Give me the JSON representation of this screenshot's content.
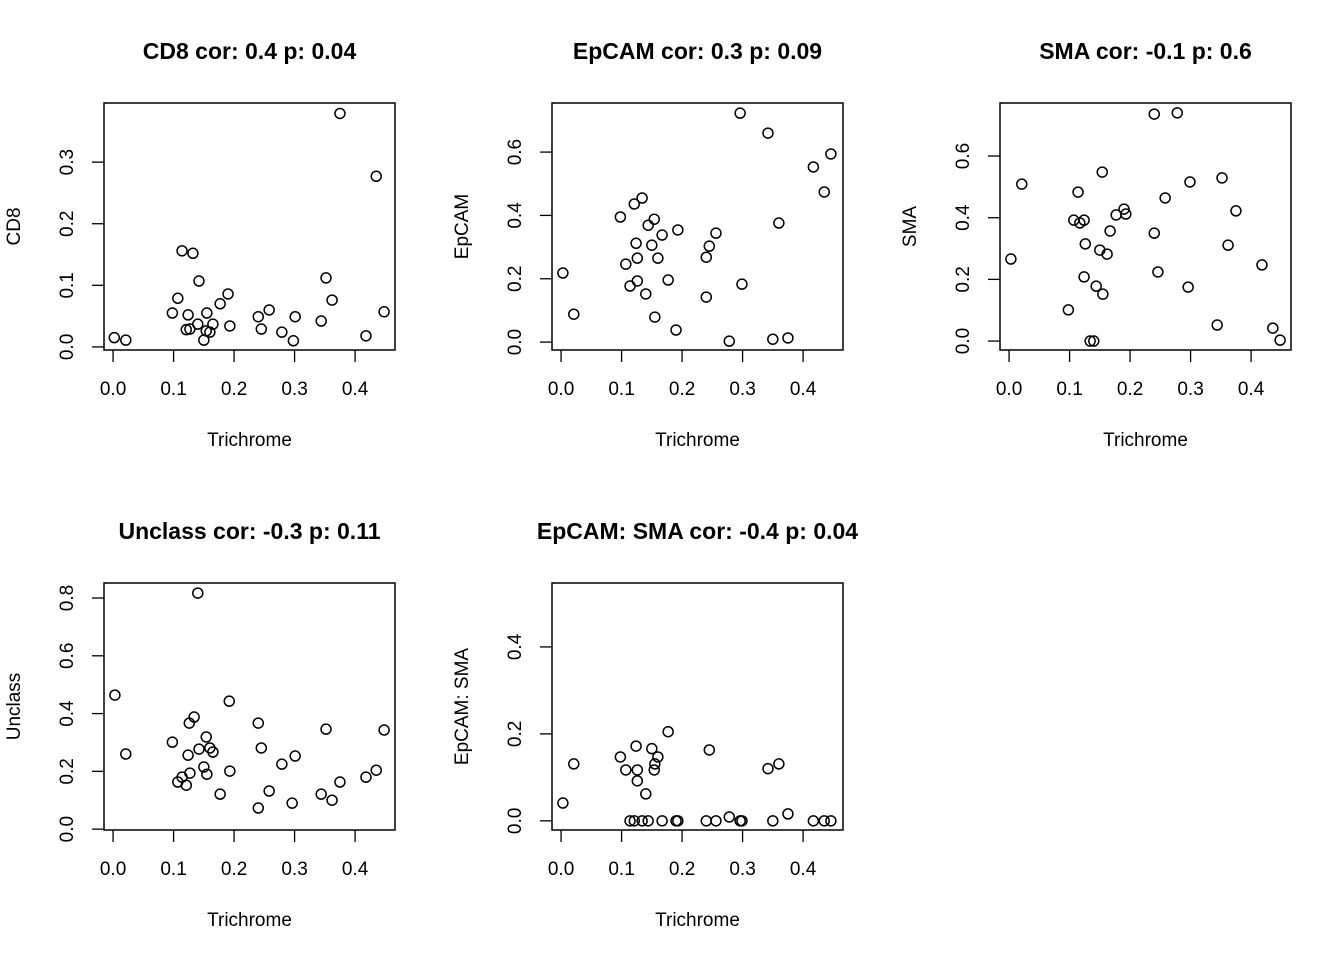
{
  "chart_data": [
    {
      "type": "scatter",
      "title": "CD8 cor: 0.4 p: 0.04",
      "xlabel": "Trichrome",
      "ylabel": "CD8",
      "x": [
        0.002,
        0.021,
        0.098,
        0.107,
        0.114,
        0.121,
        0.124,
        0.127,
        0.132,
        0.14,
        0.142,
        0.15,
        0.155,
        0.154,
        0.16,
        0.165,
        0.177,
        0.19,
        0.193,
        0.24,
        0.245,
        0.258,
        0.279,
        0.298,
        0.301,
        0.344,
        0.352,
        0.362,
        0.375,
        0.418,
        0.435,
        0.448
      ],
      "values": [
        0.015,
        0.011,
        0.055,
        0.079,
        0.156,
        0.028,
        0.052,
        0.029,
        0.152,
        0.037,
        0.107,
        0.011,
        0.055,
        0.026,
        0.024,
        0.037,
        0.07,
        0.086,
        0.034,
        0.049,
        0.029,
        0.06,
        0.024,
        0.01,
        0.049,
        0.042,
        0.112,
        0.076,
        0.379,
        0.018,
        0.277,
        0.057
      ],
      "xlim": [
        -0.015,
        0.466
      ],
      "ylim": [
        -0.005,
        0.396
      ],
      "xticks": [
        {
          "value": 0,
          "label": "0.0"
        },
        0.1,
        0.2,
        0.3,
        0.4
      ],
      "yticks": [
        {
          "value": 0,
          "label": "0.0"
        },
        0.1,
        0.2,
        0.3
      ]
    },
    {
      "type": "scatter",
      "title": "EpCAM cor: 0.3 p: 0.09",
      "xlabel": "Trichrome",
      "ylabel": "EpCAM",
      "x": [
        0.003,
        0.021,
        0.098,
        0.107,
        0.114,
        0.121,
        0.124,
        0.126,
        0.126,
        0.134,
        0.14,
        0.144,
        0.15,
        0.154,
        0.155,
        0.16,
        0.167,
        0.177,
        0.19,
        0.193,
        0.24,
        0.245,
        0.24,
        0.256,
        0.278,
        0.296,
        0.299,
        0.342,
        0.35,
        0.36,
        0.375,
        0.417,
        0.435,
        0.446
      ],
      "values": [
        0.218,
        0.088,
        0.395,
        0.246,
        0.177,
        0.436,
        0.312,
        0.265,
        0.193,
        0.455,
        0.152,
        0.369,
        0.306,
        0.388,
        0.079,
        0.265,
        0.338,
        0.196,
        0.038,
        0.354,
        0.268,
        0.303,
        0.142,
        0.344,
        0.003,
        0.723,
        0.183,
        0.66,
        0.009,
        0.376,
        0.013,
        0.553,
        0.474,
        0.594
      ],
      "xlim": [
        -0.015,
        0.466
      ],
      "ylim": [
        -0.025,
        0.755
      ],
      "xticks": [
        {
          "value": 0,
          "label": "0.0"
        },
        0.1,
        0.2,
        0.3,
        0.4
      ],
      "yticks": [
        {
          "value": 0,
          "label": "0.0"
        },
        0.2,
        0.4,
        0.6
      ]
    },
    {
      "type": "scatter",
      "title": "SMA cor: -0.1 p: 0.6",
      "xlabel": "Trichrome",
      "ylabel": "SMA",
      "x": [
        0.003,
        0.021,
        0.098,
        0.107,
        0.114,
        0.117,
        0.124,
        0.126,
        0.124,
        0.134,
        0.14,
        0.144,
        0.15,
        0.154,
        0.155,
        0.162,
        0.167,
        0.177,
        0.19,
        0.193,
        0.24,
        0.246,
        0.258,
        0.296,
        0.299,
        0.344,
        0.352,
        0.362,
        0.375,
        0.418,
        0.436,
        0.448,
        0.24,
        0.278
      ],
      "values": [
        0.266,
        0.509,
        0.101,
        0.392,
        0.483,
        0.383,
        0.392,
        0.315,
        0.208,
        0,
        0,
        0.178,
        0.295,
        0.548,
        0.152,
        0.282,
        0.357,
        0.409,
        0.428,
        0.412,
        0.35,
        0.224,
        0.464,
        0.175,
        0.516,
        0.052,
        0.529,
        0.311,
        0.422,
        0.247,
        0.042,
        0.003,
        0.736,
        0.74
      ],
      "xlim": [
        -0.015,
        0.466
      ],
      "ylim": [
        -0.029,
        0.772
      ],
      "xticks": [
        {
          "value": 0,
          "label": "0.0"
        },
        0.1,
        0.2,
        0.3,
        0.4
      ],
      "yticks": [
        {
          "value": 0,
          "label": "0.0"
        },
        0.2,
        0.4,
        0.6
      ]
    },
    {
      "type": "scatter",
      "title": "Unclass cor: -0.3 p: 0.11",
      "xlabel": "Trichrome",
      "ylabel": "Unclass",
      "x": [
        0.003,
        0.021,
        0.098,
        0.107,
        0.114,
        0.121,
        0.124,
        0.126,
        0.127,
        0.134,
        0.14,
        0.142,
        0.15,
        0.154,
        0.155,
        0.16,
        0.165,
        0.177,
        0.192,
        0.193,
        0.24,
        0.24,
        0.245,
        0.258,
        0.279,
        0.296,
        0.301,
        0.344,
        0.352,
        0.362,
        0.375,
        0.418,
        0.435,
        0.448
      ],
      "values": [
        0.464,
        0.26,
        0.301,
        0.163,
        0.18,
        0.152,
        0.256,
        0.367,
        0.194,
        0.388,
        0.817,
        0.277,
        0.215,
        0.319,
        0.19,
        0.281,
        0.267,
        0.121,
        0.443,
        0.201,
        0.367,
        0.073,
        0.281,
        0.132,
        0.225,
        0.09,
        0.253,
        0.121,
        0.346,
        0.1,
        0.163,
        0.18,
        0.204,
        0.343
      ],
      "xlim": [
        -0.015,
        0.466
      ],
      "ylim": [
        -0.003,
        0.852
      ],
      "xticks": [
        {
          "value": 0,
          "label": "0.0"
        },
        0.1,
        0.2,
        0.3,
        0.4
      ],
      "yticks": [
        {
          "value": 0,
          "label": "0.0"
        },
        0.2,
        0.4,
        0.6,
        0.8
      ]
    },
    {
      "type": "scatter",
      "title": "EpCAM: SMA cor: -0.4 p: 0.04",
      "xlabel": "Trichrome",
      "ylabel": "EpCAM: SMA",
      "x": [
        0.003,
        0.021,
        0.098,
        0.107,
        0.114,
        0.121,
        0.124,
        0.126,
        0.126,
        0.134,
        0.14,
        0.144,
        0.15,
        0.154,
        0.155,
        0.16,
        0.167,
        0.177,
        0.19,
        0.193,
        0.24,
        0.245,
        0.256,
        0.278,
        0.296,
        0.299,
        0.342,
        0.35,
        0.36,
        0.375,
        0.417,
        0.435,
        0.446
      ],
      "values": [
        0.041,
        0.131,
        0.147,
        0.117,
        0,
        0,
        0.172,
        0.117,
        0.092,
        0,
        0.062,
        0,
        0.166,
        0.117,
        0.131,
        0.147,
        0,
        0.205,
        0,
        0,
        0,
        0.163,
        0,
        0.009,
        0,
        0,
        0.12,
        0,
        0.131,
        0.016,
        0,
        0,
        0
      ],
      "xlim": [
        -0.015,
        0.466
      ],
      "ylim": [
        -0.021,
        0.547
      ],
      "xticks": [
        {
          "value": 0,
          "label": "0.0"
        },
        0.1,
        0.2,
        0.3,
        0.4
      ],
      "yticks": [
        {
          "value": 0,
          "label": "0.0"
        },
        0.2,
        0.4
      ]
    }
  ]
}
